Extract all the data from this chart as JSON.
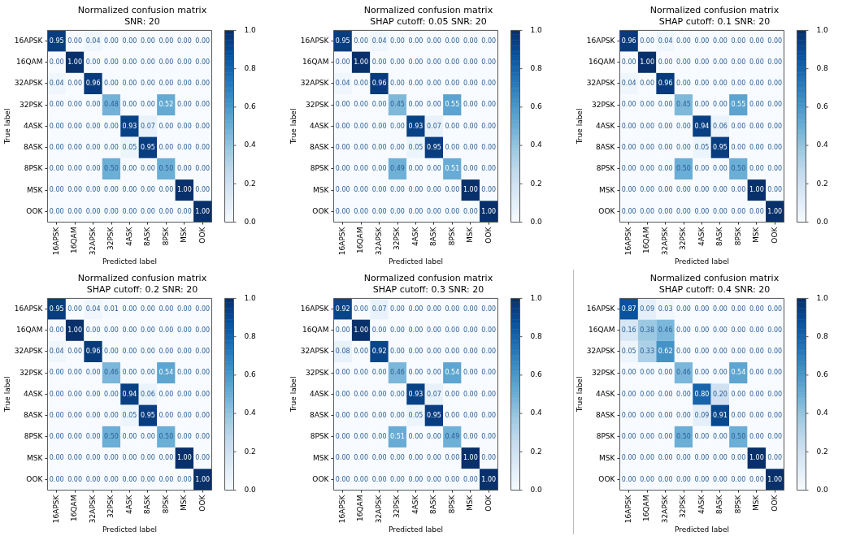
{
  "chart_data": [
    {
      "type": "heatmap",
      "title": "Normalized confusion matrix",
      "subtitle": "SNR: 20",
      "xlabel": "Predicted label",
      "ylabel": "True label",
      "categories": [
        "16APSK",
        "16QAM",
        "32APSK",
        "32PSK",
        "4ASK",
        "8ASK",
        "8PSK",
        "MSK",
        "OOK"
      ],
      "y_categories": [
        "16APSK",
        "16QAM",
        "32APSK",
        "32PSK",
        "4ASK",
        "8ASK",
        "8PSK",
        "MSK",
        "OOK"
      ],
      "cells": [
        [
          0.95,
          0,
          0.04,
          0,
          0,
          0,
          0,
          0,
          0
        ],
        [
          0,
          1,
          0,
          0,
          0,
          0,
          0,
          0,
          0
        ],
        [
          0.04,
          0,
          0.96,
          0,
          0,
          0,
          0,
          0,
          0
        ],
        [
          0,
          0,
          0,
          0.48,
          0,
          0,
          0.52,
          0,
          0
        ],
        [
          0,
          0,
          0,
          0,
          0.93,
          0.07,
          0,
          0,
          0
        ],
        [
          0,
          0,
          0,
          0,
          0.05,
          0.95,
          0,
          0,
          0
        ],
        [
          0,
          0,
          0,
          0.5,
          0,
          0,
          0.5,
          0,
          0
        ],
        [
          0,
          0,
          0,
          0,
          0,
          0,
          0,
          1,
          0
        ],
        [
          0,
          0,
          0,
          0,
          0,
          0,
          0,
          0,
          1
        ]
      ],
      "cell_labels": [
        [
          "0.95",
          "0.00",
          "0.04",
          "0.00",
          "0.00",
          "0.00",
          "0.00",
          "0.00",
          "0.00"
        ],
        [
          "0.00",
          "1.00",
          "0.00",
          "0.00",
          "0.00",
          "0.00",
          "0.00",
          "0.00",
          "0.00"
        ],
        [
          "0.04",
          "0.00",
          "0.96",
          "0.00",
          "0.00",
          "0.00",
          "0.00",
          "0.00",
          "0.00"
        ],
        [
          "0.00",
          "0.00",
          "0.00",
          "0.48",
          "0.00",
          "0.00",
          "0.52",
          "0.00",
          "0.00"
        ],
        [
          "0.00",
          "0.00",
          "0.00",
          "0.00",
          "0.93",
          "0.07",
          "0.00",
          "0.00",
          "0.00"
        ],
        [
          "0.00",
          "0.00",
          "0.00",
          "0.00",
          "0.05",
          "0.95",
          "0.00",
          "0.00",
          "0.00"
        ],
        [
          "0.00",
          "0.00",
          "0.00",
          "0.50",
          "0.00",
          "0.00",
          "0.50",
          "0.00",
          "0.00"
        ],
        [
          "0.00",
          "0.00",
          "0.00",
          "0.00",
          "0.00",
          "0.00",
          "0.00",
          "1.00",
          "0.00"
        ],
        [
          "0.00",
          "0.00",
          "0.00",
          "0.00",
          "0.00",
          "0.00",
          "0.00",
          "0.00",
          "1.00"
        ]
      ],
      "clim": [
        0,
        1
      ],
      "cticks": [
        {
          "value": 0,
          "label": "0.0"
        },
        {
          "value": 0.2,
          "label": "0.2"
        },
        {
          "value": 0.4,
          "label": "0.4"
        },
        {
          "value": 0.6,
          "label": "0.6"
        },
        {
          "value": 0.8,
          "label": "0.8"
        },
        {
          "value": 1,
          "label": "1.0"
        }
      ]
    },
    {
      "type": "heatmap",
      "title": "Normalized confusion matrix",
      "subtitle": "SHAP cutoff: 0.05 SNR: 20",
      "xlabel": "Predicted label",
      "ylabel": "True label",
      "categories": [
        "16APSK",
        "16QAM",
        "32APSK",
        "32PSK",
        "4ASK",
        "8ASK",
        "8PSK",
        "MSK",
        "OOK"
      ],
      "y_categories": [
        "16APSK",
        "16QAM",
        "32APSK",
        "32PSK",
        "4ASK",
        "8ASK",
        "8PSK",
        "MSK",
        "OOK"
      ],
      "cells": [
        [
          0.95,
          0,
          0.04,
          0,
          0,
          0,
          0,
          0,
          0
        ],
        [
          0,
          1,
          0,
          0,
          0,
          0,
          0,
          0,
          0
        ],
        [
          0.04,
          0,
          0.96,
          0,
          0,
          0,
          0,
          0,
          0
        ],
        [
          0,
          0,
          0,
          0.45,
          0,
          0,
          0.55,
          0,
          0
        ],
        [
          0,
          0,
          0,
          0,
          0.93,
          0.07,
          0,
          0,
          0
        ],
        [
          0,
          0,
          0,
          0,
          0.05,
          0.95,
          0,
          0,
          0
        ],
        [
          0,
          0,
          0,
          0.49,
          0,
          0,
          0.51,
          0,
          0
        ],
        [
          0,
          0,
          0,
          0,
          0,
          0,
          0,
          1,
          0
        ],
        [
          0,
          0,
          0,
          0,
          0,
          0,
          0,
          0,
          1
        ]
      ],
      "cell_labels": [
        [
          "0.95",
          "0.00",
          "0.04",
          "0.00",
          "0.00",
          "0.00",
          "0.00",
          "0.00",
          "0.00"
        ],
        [
          "0.00",
          "1.00",
          "0.00",
          "0.00",
          "0.00",
          "0.00",
          "0.00",
          "0.00",
          "0.00"
        ],
        [
          "0.04",
          "0.00",
          "0.96",
          "0.00",
          "0.00",
          "0.00",
          "0.00",
          "0.00",
          "0.00"
        ],
        [
          "0.00",
          "0.00",
          "0.00",
          "0.45",
          "0.00",
          "0.00",
          "0.55",
          "0.00",
          "0.00"
        ],
        [
          "0.00",
          "0.00",
          "0.00",
          "0.00",
          "0.93",
          "0.07",
          "0.00",
          "0.00",
          "0.00"
        ],
        [
          "0.00",
          "0.00",
          "0.00",
          "0.00",
          "0.05",
          "0.95",
          "0.00",
          "0.00",
          "0.00"
        ],
        [
          "0.00",
          "0.00",
          "0.00",
          "0.49",
          "0.00",
          "0.00",
          "0.51",
          "0.00",
          "0.00"
        ],
        [
          "0.00",
          "0.00",
          "0.00",
          "0.00",
          "0.00",
          "0.00",
          "0.00",
          "1.00",
          "0.00"
        ],
        [
          "0.00",
          "0.00",
          "0.00",
          "0.00",
          "0.00",
          "0.00",
          "0.00",
          "0.00",
          "1.00"
        ]
      ],
      "clim": [
        0,
        1
      ],
      "cticks": [
        {
          "value": 0,
          "label": "0.0"
        },
        {
          "value": 0.2,
          "label": "0.2"
        },
        {
          "value": 0.4,
          "label": "0.4"
        },
        {
          "value": 0.6,
          "label": "0.6"
        },
        {
          "value": 0.8,
          "label": "0.8"
        },
        {
          "value": 1,
          "label": "1.0"
        }
      ]
    },
    {
      "type": "heatmap",
      "title": "Normalized confusion matrix",
      "subtitle": "SHAP cutoff: 0.1 SNR: 20",
      "xlabel": "Predicted label",
      "ylabel": "True label",
      "categories": [
        "16APSK",
        "16QAM",
        "32APSK",
        "32PSK",
        "4ASK",
        "8ASK",
        "8PSK",
        "MSK",
        "OOK"
      ],
      "y_categories": [
        "16APSK",
        "16QAM",
        "32APSK",
        "32PSK",
        "4ASK",
        "8ASK",
        "8PSK",
        "MSK",
        "OOK"
      ],
      "cells": [
        [
          0.96,
          0,
          0.04,
          0,
          0,
          0,
          0,
          0,
          0
        ],
        [
          0,
          1,
          0,
          0,
          0,
          0,
          0,
          0,
          0
        ],
        [
          0.04,
          0,
          0.96,
          0,
          0,
          0,
          0,
          0,
          0
        ],
        [
          0,
          0,
          0,
          0.45,
          0,
          0,
          0.55,
          0,
          0
        ],
        [
          0,
          0,
          0,
          0,
          0.94,
          0.06,
          0,
          0,
          0
        ],
        [
          0,
          0,
          0,
          0,
          0.05,
          0.95,
          0,
          0,
          0
        ],
        [
          0,
          0,
          0,
          0.5,
          0,
          0,
          0.5,
          0,
          0
        ],
        [
          0,
          0,
          0,
          0,
          0,
          0,
          0,
          1,
          0
        ],
        [
          0,
          0,
          0,
          0,
          0,
          0,
          0,
          0,
          1
        ]
      ],
      "cell_labels": [
        [
          "0.96",
          "0.00",
          "0.04",
          "0.00",
          "0.00",
          "0.00",
          "0.00",
          "0.00",
          "0.00"
        ],
        [
          "0.00",
          "1.00",
          "0.00",
          "0.00",
          "0.00",
          "0.00",
          "0.00",
          "0.00",
          "0.00"
        ],
        [
          "0.04",
          "0.00",
          "0.96",
          "0.00",
          "0.00",
          "0.00",
          "0.00",
          "0.00",
          "0.00"
        ],
        [
          "0.00",
          "0.00",
          "0.00",
          "0.45",
          "0.00",
          "0.00",
          "0.55",
          "0.00",
          "0.00"
        ],
        [
          "0.00",
          "0.00",
          "0.00",
          "0.00",
          "0.94",
          "0.06",
          "0.00",
          "0.00",
          "0.00"
        ],
        [
          "0.00",
          "0.00",
          "0.00",
          "0.00",
          "0.05",
          "0.95",
          "0.00",
          "0.00",
          "0.00"
        ],
        [
          "0.00",
          "0.00",
          "0.00",
          "0.50",
          "0.00",
          "0.00",
          "0.50",
          "0.00",
          "0.00"
        ],
        [
          "0.00",
          "0.00",
          "0.00",
          "0.00",
          "0.00",
          "0.00",
          "0.00",
          "1.00",
          "0.00"
        ],
        [
          "0.00",
          "0.00",
          "0.00",
          "0.00",
          "0.00",
          "0.00",
          "0.00",
          "0.00",
          "1.00"
        ]
      ],
      "clim": [
        0,
        1
      ],
      "cticks": [
        {
          "value": 0,
          "label": "0.0"
        },
        {
          "value": 0.2,
          "label": "0.2"
        },
        {
          "value": 0.4,
          "label": "0.4"
        },
        {
          "value": 0.6,
          "label": "0.6"
        },
        {
          "value": 0.8,
          "label": "0.8"
        },
        {
          "value": 1,
          "label": "1.0"
        }
      ]
    },
    {
      "type": "heatmap",
      "title": "Normalized confusion matrix",
      "subtitle": "SHAP cutoff: 0.2 SNR: 20",
      "xlabel": "Predicted label",
      "ylabel": "True label",
      "categories": [
        "16APSK",
        "16QAM",
        "32APSK",
        "32PSK",
        "4ASK",
        "8ASK",
        "8PSK",
        "MSK",
        "OOK"
      ],
      "y_categories": [
        "16APSK",
        "16QAM",
        "32APSK",
        "32PSK",
        "4ASK",
        "8ASK",
        "8PSK",
        "MSK",
        "OOK"
      ],
      "cells": [
        [
          0.95,
          0,
          0.04,
          0.01,
          0,
          0,
          0,
          0,
          0
        ],
        [
          0,
          1,
          0,
          0,
          0,
          0,
          0,
          0,
          0
        ],
        [
          0.04,
          0,
          0.96,
          0,
          0,
          0,
          0,
          0,
          0
        ],
        [
          0,
          0,
          0,
          0.46,
          0,
          0,
          0.54,
          0,
          0
        ],
        [
          0,
          0,
          0,
          0,
          0.94,
          0.06,
          0,
          0,
          0
        ],
        [
          0,
          0,
          0,
          0,
          0.05,
          0.95,
          0,
          0,
          0
        ],
        [
          0,
          0,
          0,
          0.5,
          0,
          0,
          0.5,
          0,
          0
        ],
        [
          0,
          0,
          0,
          0,
          0,
          0,
          0,
          1,
          0
        ],
        [
          0,
          0,
          0,
          0,
          0,
          0,
          0,
          0,
          1
        ]
      ],
      "cell_labels": [
        [
          "0.95",
          "0.00",
          "0.04",
          "0.01",
          "0.00",
          "0.00",
          "0.00",
          "0.00",
          "0.00"
        ],
        [
          "0.00",
          "1.00",
          "0.00",
          "0.00",
          "0.00",
          "0.00",
          "0.00",
          "0.00",
          "0.00"
        ],
        [
          "0.04",
          "0.00",
          "0.96",
          "0.00",
          "0.00",
          "0.00",
          "0.00",
          "0.00",
          "0.00"
        ],
        [
          "0.00",
          "0.00",
          "0.00",
          "0.46",
          "0.00",
          "0.00",
          "0.54",
          "0.00",
          "0.00"
        ],
        [
          "0.00",
          "0.00",
          "0.00",
          "0.00",
          "0.94",
          "0.06",
          "0.00",
          "0.00",
          "0.00"
        ],
        [
          "0.00",
          "0.00",
          "0.00",
          "0.00",
          "0.05",
          "0.95",
          "0.00",
          "0.00",
          "0.00"
        ],
        [
          "0.00",
          "0.00",
          "0.00",
          "0.50",
          "0.00",
          "0.00",
          "0.50",
          "0.00",
          "0.00"
        ],
        [
          "0.00",
          "0.00",
          "0.00",
          "0.00",
          "0.00",
          "0.00",
          "0.00",
          "1.00",
          "0.00"
        ],
        [
          "0.00",
          "0.00",
          "0.00",
          "0.00",
          "0.00",
          "0.00",
          "0.00",
          "0.00",
          "1.00"
        ]
      ],
      "clim": [
        0,
        1
      ],
      "cticks": [
        {
          "value": 0,
          "label": "0.0"
        },
        {
          "value": 0.2,
          "label": "0.2"
        },
        {
          "value": 0.4,
          "label": "0.4"
        },
        {
          "value": 0.6,
          "label": "0.6"
        },
        {
          "value": 0.8,
          "label": "0.8"
        },
        {
          "value": 1,
          "label": "1.0"
        }
      ]
    },
    {
      "type": "heatmap",
      "title": "Normalized confusion matrix",
      "subtitle": "SHAP cutoff: 0.3 SNR: 20",
      "xlabel": "Predicted label",
      "ylabel": "True label",
      "categories": [
        "16APSK",
        "16QAM",
        "32APSK",
        "32PSK",
        "4ASK",
        "8ASK",
        "8PSK",
        "MSK",
        "OOK"
      ],
      "y_categories": [
        "16APSK",
        "16QAM",
        "32APSK",
        "32PSK",
        "4ASK",
        "8ASK",
        "8PSK",
        "MSK",
        "OOK"
      ],
      "cells": [
        [
          0.92,
          0,
          0.07,
          0,
          0,
          0,
          0,
          0,
          0
        ],
        [
          0,
          1,
          0,
          0,
          0,
          0,
          0,
          0,
          0
        ],
        [
          0.08,
          0,
          0.92,
          0,
          0,
          0,
          0,
          0,
          0
        ],
        [
          0,
          0,
          0,
          0.46,
          0,
          0,
          0.54,
          0,
          0
        ],
        [
          0,
          0,
          0,
          0,
          0.93,
          0.07,
          0,
          0,
          0
        ],
        [
          0,
          0,
          0,
          0,
          0.05,
          0.95,
          0,
          0,
          0
        ],
        [
          0,
          0,
          0,
          0.51,
          0,
          0,
          0.49,
          0,
          0
        ],
        [
          0,
          0,
          0,
          0,
          0,
          0,
          0,
          1,
          0
        ],
        [
          0,
          0,
          0,
          0,
          0,
          0,
          0,
          0,
          1
        ]
      ],
      "cell_labels": [
        [
          "0.92",
          "0.00",
          "0.07",
          "0.00",
          "0.00",
          "0.00",
          "0.00",
          "0.00",
          "0.00"
        ],
        [
          "0.00",
          "1.00",
          "0.00",
          "0.00",
          "0.00",
          "0.00",
          "0.00",
          "0.00",
          "0.00"
        ],
        [
          "0.08",
          "0.00",
          "0.92",
          "0.00",
          "0.00",
          "0.00",
          "0.00",
          "0.00",
          "0.00"
        ],
        [
          "0.00",
          "0.00",
          "0.00",
          "0.46",
          "0.00",
          "0.00",
          "0.54",
          "0.00",
          "0.00"
        ],
        [
          "0.00",
          "0.00",
          "0.00",
          "0.00",
          "0.93",
          "0.07",
          "0.00",
          "0.00",
          "0.00"
        ],
        [
          "0.00",
          "0.00",
          "0.00",
          "0.00",
          "0.05",
          "0.95",
          "0.00",
          "0.00",
          "0.00"
        ],
        [
          "0.00",
          "0.00",
          "0.00",
          "0.51",
          "0.00",
          "0.00",
          "0.49",
          "0.00",
          "0.00"
        ],
        [
          "0.00",
          "0.00",
          "0.00",
          "0.00",
          "0.00",
          "0.00",
          "0.00",
          "1.00",
          "0.00"
        ],
        [
          "0.00",
          "0.00",
          "0.00",
          "0.00",
          "0.00",
          "0.00",
          "0.00",
          "0.00",
          "1.00"
        ]
      ],
      "clim": [
        0,
        1
      ],
      "cticks": [
        {
          "value": 0,
          "label": "0.0"
        },
        {
          "value": 0.2,
          "label": "0.2"
        },
        {
          "value": 0.4,
          "label": "0.4"
        },
        {
          "value": 0.6,
          "label": "0.6"
        },
        {
          "value": 0.8,
          "label": "0.8"
        },
        {
          "value": 1,
          "label": "1.0"
        }
      ]
    },
    {
      "type": "heatmap",
      "title": "Normalized confusion matrix",
      "subtitle": "SHAP cutoff: 0.4 SNR: 20",
      "xlabel": "Predicted label",
      "ylabel": "True label",
      "categories": [
        "16APSK",
        "16QAM",
        "32APSK",
        "32PSK",
        "4ASK",
        "8ASK",
        "8PSK",
        "MSK",
        "OOK"
      ],
      "y_categories": [
        "16APSK",
        "16QAM",
        "32APSK",
        "32PSK",
        "4ASK",
        "8ASK",
        "8PSK",
        "MSK",
        "OOK"
      ],
      "cells": [
        [
          0.87,
          0.09,
          0.03,
          0,
          0,
          0,
          0,
          0,
          0
        ],
        [
          0.16,
          0.38,
          0.46,
          0,
          0,
          0,
          0,
          0,
          0
        ],
        [
          0.05,
          0.33,
          0.62,
          0,
          0,
          0,
          0,
          0,
          0
        ],
        [
          0,
          0,
          0,
          0.46,
          0,
          0,
          0.54,
          0,
          0
        ],
        [
          0,
          0,
          0,
          0,
          0.8,
          0.2,
          0,
          0,
          0
        ],
        [
          0,
          0,
          0,
          0,
          0.09,
          0.91,
          0,
          0,
          0
        ],
        [
          0,
          0,
          0,
          0.5,
          0,
          0,
          0.5,
          0,
          0
        ],
        [
          0,
          0,
          0,
          0,
          0,
          0,
          0,
          1,
          0
        ],
        [
          0,
          0,
          0,
          0,
          0,
          0,
          0,
          0,
          1
        ]
      ],
      "cell_labels": [
        [
          "0.87",
          "0.09",
          "0.03",
          "0.00",
          "0.00",
          "0.00",
          "0.00",
          "0.00",
          "0.00"
        ],
        [
          "0.16",
          "0.38",
          "0.46",
          "0.00",
          "0.00",
          "0.00",
          "0.00",
          "0.00",
          "0.00"
        ],
        [
          "0.05",
          "0.33",
          "0.62",
          "0.00",
          "0.00",
          "0.00",
          "0.00",
          "0.00",
          "0.00"
        ],
        [
          "0.00",
          "0.00",
          "0.00",
          "0.46",
          "0.00",
          "0.00",
          "0.54",
          "0.00",
          "0.00"
        ],
        [
          "0.00",
          "0.00",
          "0.00",
          "0.00",
          "0.80",
          "0.20",
          "0.00",
          "0.00",
          "0.00"
        ],
        [
          "0.00",
          "0.00",
          "0.00",
          "0.00",
          "0.09",
          "0.91",
          "0.00",
          "0.00",
          "0.00"
        ],
        [
          "0.00",
          "0.00",
          "0.00",
          "0.50",
          "0.00",
          "0.00",
          "0.50",
          "0.00",
          "0.00"
        ],
        [
          "0.00",
          "0.00",
          "0.00",
          "0.00",
          "0.00",
          "0.00",
          "0.00",
          "1.00",
          "0.00"
        ],
        [
          "0.00",
          "0.00",
          "0.00",
          "0.00",
          "0.00",
          "0.00",
          "0.00",
          "0.00",
          "1.00"
        ]
      ],
      "clim": [
        0,
        1
      ],
      "cticks": [
        {
          "value": 0,
          "label": "0.0"
        },
        {
          "value": 0.2,
          "label": "0.2"
        },
        {
          "value": 0.4,
          "label": "0.4"
        },
        {
          "value": 0.6,
          "label": "0.6"
        },
        {
          "value": 0.8,
          "label": "0.8"
        },
        {
          "value": 1,
          "label": "1.0"
        }
      ]
    }
  ]
}
